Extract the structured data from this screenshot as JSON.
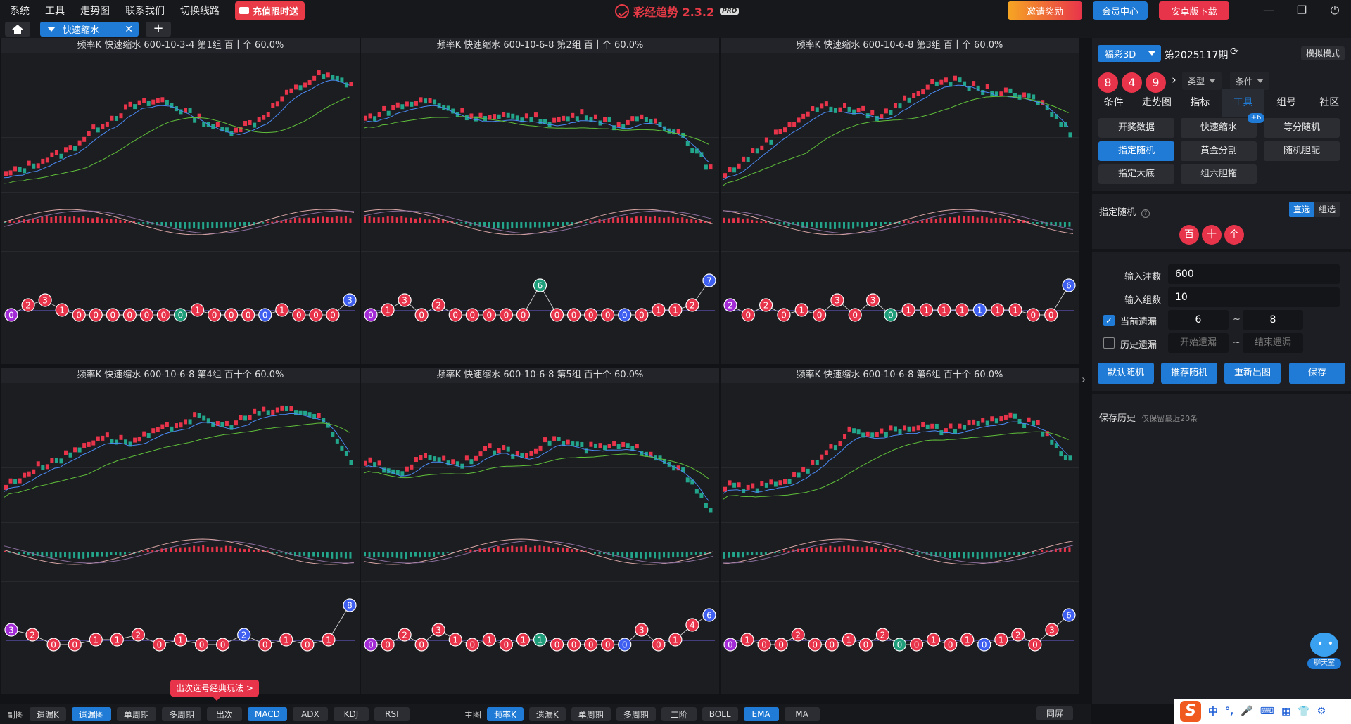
{
  "menu": [
    "系统",
    "工具",
    "走势图",
    "联系我们",
    "切换线路"
  ],
  "promo": "充值限时送",
  "brand": {
    "name": "彩经趋势 2.3.2",
    "tag": "PRO"
  },
  "top_buttons": {
    "invite": "邀请奖励",
    "member": "会员中心",
    "android": "安卓版下载"
  },
  "window_icons": [
    "minimize-icon",
    "restore-icon",
    "power-icon"
  ],
  "tab": {
    "label": "快速缩水"
  },
  "panels": [
    {
      "title": "频率K  快速缩水  600-10-3-4 第1组  百十个  60.0%",
      "balls": [
        {
          "v": "0",
          "c": "purple"
        },
        {
          "v": "2",
          "c": "red"
        },
        {
          "v": "3",
          "c": "red"
        },
        {
          "v": "1",
          "c": "red"
        },
        {
          "v": "0",
          "c": "red"
        },
        {
          "v": "0",
          "c": "red"
        },
        {
          "v": "0",
          "c": "red"
        },
        {
          "v": "0",
          "c": "red"
        },
        {
          "v": "0",
          "c": "red"
        },
        {
          "v": "0",
          "c": "red"
        },
        {
          "v": "0",
          "c": "green"
        },
        {
          "v": "1",
          "c": "red"
        },
        {
          "v": "0",
          "c": "red"
        },
        {
          "v": "0",
          "c": "red"
        },
        {
          "v": "0",
          "c": "red"
        },
        {
          "v": "0",
          "c": "blue"
        },
        {
          "v": "1",
          "c": "red"
        },
        {
          "v": "0",
          "c": "red"
        },
        {
          "v": "0",
          "c": "red"
        },
        {
          "v": "0",
          "c": "red"
        },
        {
          "v": "3",
          "c": "blue"
        }
      ]
    },
    {
      "title": "频率K  快速缩水  600-10-6-8 第2组  百十个  60.0%",
      "balls": [
        {
          "v": "0",
          "c": "purple"
        },
        {
          "v": "1",
          "c": "red"
        },
        {
          "v": "3",
          "c": "red"
        },
        {
          "v": "0",
          "c": "red"
        },
        {
          "v": "2",
          "c": "red"
        },
        {
          "v": "0",
          "c": "red"
        },
        {
          "v": "0",
          "c": "red"
        },
        {
          "v": "0",
          "c": "red"
        },
        {
          "v": "0",
          "c": "red"
        },
        {
          "v": "0",
          "c": "red"
        },
        {
          "v": "6",
          "c": "green"
        },
        {
          "v": "0",
          "c": "red"
        },
        {
          "v": "0",
          "c": "red"
        },
        {
          "v": "0",
          "c": "red"
        },
        {
          "v": "0",
          "c": "red"
        },
        {
          "v": "0",
          "c": "blue"
        },
        {
          "v": "0",
          "c": "red"
        },
        {
          "v": "1",
          "c": "red"
        },
        {
          "v": "1",
          "c": "red"
        },
        {
          "v": "2",
          "c": "red"
        },
        {
          "v": "7",
          "c": "blue"
        }
      ]
    },
    {
      "title": "频率K  快速缩水  600-10-6-8 第3组  百十个  60.0%",
      "balls": [
        {
          "v": "2",
          "c": "purple"
        },
        {
          "v": "0",
          "c": "red"
        },
        {
          "v": "2",
          "c": "red"
        },
        {
          "v": "0",
          "c": "red"
        },
        {
          "v": "1",
          "c": "red"
        },
        {
          "v": "0",
          "c": "red"
        },
        {
          "v": "3",
          "c": "red"
        },
        {
          "v": "0",
          "c": "red"
        },
        {
          "v": "3",
          "c": "red"
        },
        {
          "v": "0",
          "c": "green"
        },
        {
          "v": "1",
          "c": "red"
        },
        {
          "v": "1",
          "c": "red"
        },
        {
          "v": "1",
          "c": "red"
        },
        {
          "v": "1",
          "c": "red"
        },
        {
          "v": "1",
          "c": "blue"
        },
        {
          "v": "1",
          "c": "red"
        },
        {
          "v": "1",
          "c": "red"
        },
        {
          "v": "0",
          "c": "red"
        },
        {
          "v": "0",
          "c": "red"
        },
        {
          "v": "6",
          "c": "blue"
        }
      ]
    },
    {
      "title": "频率K  快速缩水  600-10-6-8 第4组  百十个  60.0%",
      "balls": [
        {
          "v": "3",
          "c": "purple"
        },
        {
          "v": "2",
          "c": "red"
        },
        {
          "v": "0",
          "c": "red"
        },
        {
          "v": "0",
          "c": "red"
        },
        {
          "v": "1",
          "c": "red"
        },
        {
          "v": "1",
          "c": "red"
        },
        {
          "v": "2",
          "c": "red"
        },
        {
          "v": "0",
          "c": "red"
        },
        {
          "v": "1",
          "c": "red"
        },
        {
          "v": "0",
          "c": "red"
        },
        {
          "v": "0",
          "c": "red"
        },
        {
          "v": "2",
          "c": "blue"
        },
        {
          "v": "0",
          "c": "red"
        },
        {
          "v": "1",
          "c": "red"
        },
        {
          "v": "0",
          "c": "red"
        },
        {
          "v": "1",
          "c": "red"
        },
        {
          "v": "8",
          "c": "blue"
        }
      ]
    },
    {
      "title": "频率K  快速缩水  600-10-6-8 第5组  百十个  60.0%",
      "balls": [
        {
          "v": "0",
          "c": "purple"
        },
        {
          "v": "0",
          "c": "red"
        },
        {
          "v": "2",
          "c": "red"
        },
        {
          "v": "0",
          "c": "red"
        },
        {
          "v": "3",
          "c": "red"
        },
        {
          "v": "1",
          "c": "red"
        },
        {
          "v": "0",
          "c": "red"
        },
        {
          "v": "1",
          "c": "red"
        },
        {
          "v": "0",
          "c": "red"
        },
        {
          "v": "1",
          "c": "red"
        },
        {
          "v": "1",
          "c": "green"
        },
        {
          "v": "0",
          "c": "red"
        },
        {
          "v": "0",
          "c": "red"
        },
        {
          "v": "0",
          "c": "red"
        },
        {
          "v": "0",
          "c": "red"
        },
        {
          "v": "0",
          "c": "blue"
        },
        {
          "v": "3",
          "c": "red"
        },
        {
          "v": "0",
          "c": "red"
        },
        {
          "v": "1",
          "c": "red"
        },
        {
          "v": "4",
          "c": "red"
        },
        {
          "v": "6",
          "c": "blue"
        }
      ]
    },
    {
      "title": "频率K  快速缩水  600-10-6-8 第6组  百十个  60.0%",
      "balls": [
        {
          "v": "0",
          "c": "purple"
        },
        {
          "v": "1",
          "c": "red"
        },
        {
          "v": "0",
          "c": "red"
        },
        {
          "v": "0",
          "c": "red"
        },
        {
          "v": "2",
          "c": "red"
        },
        {
          "v": "0",
          "c": "red"
        },
        {
          "v": "0",
          "c": "red"
        },
        {
          "v": "1",
          "c": "red"
        },
        {
          "v": "0",
          "c": "red"
        },
        {
          "v": "2",
          "c": "red"
        },
        {
          "v": "0",
          "c": "green"
        },
        {
          "v": "0",
          "c": "red"
        },
        {
          "v": "1",
          "c": "red"
        },
        {
          "v": "0",
          "c": "red"
        },
        {
          "v": "1",
          "c": "red"
        },
        {
          "v": "0",
          "c": "blue"
        },
        {
          "v": "1",
          "c": "red"
        },
        {
          "v": "2",
          "c": "red"
        },
        {
          "v": "0",
          "c": "red"
        },
        {
          "v": "3",
          "c": "red"
        },
        {
          "v": "6",
          "c": "blue"
        }
      ]
    }
  ],
  "hint": "出次选号经典玩法 >",
  "bottom": {
    "sub_label": "副图",
    "sub_buttons": [
      {
        "label": "遗漏K",
        "on": false
      },
      {
        "label": "遗漏图",
        "on": true
      },
      {
        "label": "单周期",
        "on": false
      },
      {
        "label": "多周期",
        "on": false
      },
      {
        "label": "出次",
        "on": false
      },
      {
        "label": "MACD",
        "on": true
      },
      {
        "label": "ADX",
        "on": false
      },
      {
        "label": "KDJ",
        "on": false
      },
      {
        "label": "RSI",
        "on": false
      }
    ],
    "main_label": "主图",
    "main_buttons": [
      {
        "label": "频率K",
        "on": true
      },
      {
        "label": "遗漏K",
        "on": false
      },
      {
        "label": "单周期",
        "on": false
      },
      {
        "label": "多周期",
        "on": false
      },
      {
        "label": "二阶",
        "on": false
      },
      {
        "label": "BOLL",
        "on": false
      },
      {
        "label": "EMA",
        "on": true
      },
      {
        "label": "MA",
        "on": false
      }
    ],
    "screen": "同屏"
  },
  "right": {
    "lottery": "福彩3D",
    "period": "第2025117期",
    "sim": "模拟模式",
    "draw": [
      "8",
      "4",
      "9"
    ],
    "type_select": "类型",
    "cond_select": "条件",
    "tabs": [
      "条件",
      "走势图",
      "指标",
      "工具",
      "组号",
      "社区"
    ],
    "active_tab": 3,
    "tools": [
      {
        "label": "开奖数据",
        "on": false
      },
      {
        "label": "快速缩水",
        "on": false
      },
      {
        "label": "等分随机",
        "on": false
      },
      {
        "label": "指定随机",
        "on": true
      },
      {
        "label": "黄金分割",
        "on": false
      },
      {
        "label": "随机胆配",
        "on": false
      },
      {
        "label": "指定大底",
        "on": false
      },
      {
        "label": "组六胆拖",
        "on": false
      }
    ],
    "badge": "+6",
    "section_title": "指定随机",
    "seg": [
      "直选",
      "组选"
    ],
    "positions": [
      "百",
      "十",
      "个"
    ],
    "form": {
      "notes_label": "输入注数",
      "notes_value": "600",
      "groups_label": "输入组数",
      "groups_value": "10",
      "current_label": "当前遗漏",
      "current_from": "6",
      "current_to": "8",
      "history_label": "历史遗漏",
      "history_from_ph": "开始遗漏",
      "history_to_ph": "结束遗漏",
      "tilde": "~"
    },
    "actions": [
      "默认随机",
      "推荐随机",
      "重新出图",
      "保存"
    ],
    "history_title": "保存历史",
    "history_note": "仅保留最近20条"
  },
  "chat": "聊天室",
  "ime": [
    "中",
    "°,",
    "mic-icon",
    "keyboard-icon",
    "grid-icon",
    "shirt-icon",
    "gear-icon"
  ],
  "colors": {
    "up": "#e8344a",
    "down": "#22a58a",
    "accent": "#1f7bd6",
    "ema_fast": "#4a8af4",
    "ema_slow": "#5fbf3a"
  }
}
